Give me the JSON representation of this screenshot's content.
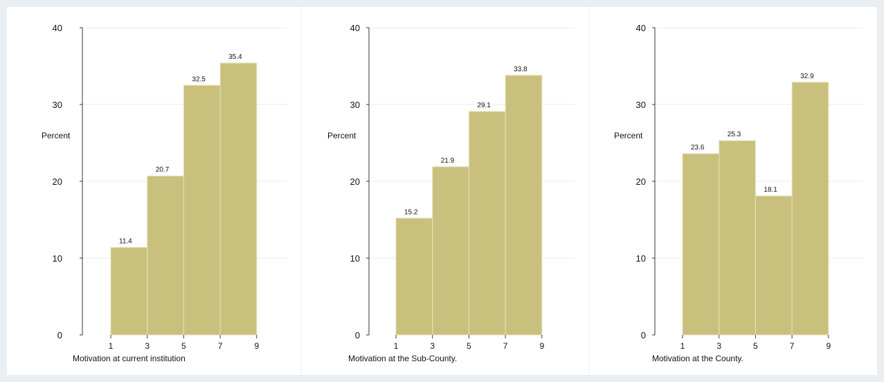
{
  "chart_data": [
    {
      "type": "bar",
      "x_ticks": [
        1,
        3,
        5,
        7,
        9
      ],
      "bins": [
        {
          "from": 1,
          "to": 3,
          "value": 11.4
        },
        {
          "from": 3,
          "to": 5,
          "value": 20.7
        },
        {
          "from": 5,
          "to": 7,
          "value": 32.5
        },
        {
          "from": 7,
          "to": 9,
          "value": 35.4
        }
      ],
      "y_ticks": [
        0,
        10,
        20,
        30,
        40
      ],
      "ylim": [
        0,
        40
      ],
      "ylabel": "Percent",
      "xlabel": "Motivation at current institution",
      "grid": true
    },
    {
      "type": "bar",
      "x_ticks": [
        1,
        3,
        5,
        7,
        9
      ],
      "bins": [
        {
          "from": 1,
          "to": 3,
          "value": 15.2
        },
        {
          "from": 3,
          "to": 5,
          "value": 21.9
        },
        {
          "from": 5,
          "to": 7,
          "value": 29.1
        },
        {
          "from": 7,
          "to": 9,
          "value": 33.8
        }
      ],
      "y_ticks": [
        0,
        10,
        20,
        30,
        40
      ],
      "ylim": [
        0,
        40
      ],
      "ylabel": "Percent",
      "xlabel": "Motivation at the Sub-County.",
      "grid": true
    },
    {
      "type": "bar",
      "x_ticks": [
        1,
        3,
        5,
        7,
        9
      ],
      "bins": [
        {
          "from": 1,
          "to": 3,
          "value": 23.6
        },
        {
          "from": 3,
          "to": 5,
          "value": 25.3
        },
        {
          "from": 5,
          "to": 7,
          "value": 18.1
        },
        {
          "from": 7,
          "to": 9,
          "value": 32.9
        }
      ],
      "y_ticks": [
        0,
        10,
        20,
        30,
        40
      ],
      "ylim": [
        0,
        40
      ],
      "ylabel": "Percent",
      "xlabel": "Motivation at the County.",
      "grid": true
    }
  ],
  "colors": {
    "bar_fill": "#c9c07d",
    "bar_edge": "#e8e3bd",
    "background": "#ffffff",
    "outer_background": "#e8eef1",
    "gridline": "#ebebeb"
  }
}
